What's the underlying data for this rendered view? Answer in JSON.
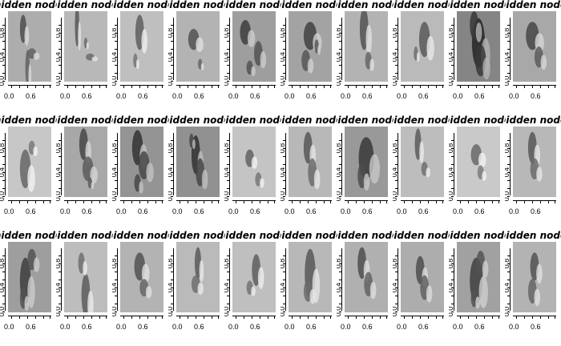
{
  "chart_data": {
    "type": "heatmap",
    "title": "",
    "colors": {
      "background": "#ffffff",
      "ink": "#000000",
      "map_mid": "#b4b4b4"
    },
    "panel_title": "hidden node",
    "x_tick_labels": [
      "0.0",
      "0.6"
    ],
    "y_tick_labels": [
      "0.0",
      "0.4",
      "0.8"
    ],
    "xlim": [
      0,
      1
    ],
    "ylim": [
      0,
      1
    ],
    "grid": false,
    "rows": 3,
    "cols": 10,
    "panels": [
      {
        "id": 1,
        "shade": 0.68,
        "strokes": [
          [
            0.35,
            0.75,
            0.15,
            0.4
          ],
          [
            0.55,
            0.4,
            0.2,
            0.15
          ],
          [
            0.45,
            0.2,
            0.1,
            0.5
          ]
        ]
      },
      {
        "id": 2,
        "shade": 0.72,
        "strokes": [
          [
            0.3,
            0.8,
            0.1,
            0.6
          ],
          [
            0.6,
            0.35,
            0.2,
            0.1
          ],
          [
            0.5,
            0.55,
            0.08,
            0.15
          ]
        ]
      },
      {
        "id": 3,
        "shade": 0.75,
        "strokes": [
          [
            0.45,
            0.7,
            0.2,
            0.5
          ],
          [
            0.35,
            0.3,
            0.1,
            0.2
          ]
        ]
      },
      {
        "id": 4,
        "shade": 0.7,
        "strokes": [
          [
            0.4,
            0.6,
            0.25,
            0.3
          ],
          [
            0.55,
            0.25,
            0.1,
            0.15
          ]
        ]
      },
      {
        "id": 5,
        "shade": 0.62,
        "strokes": [
          [
            0.3,
            0.7,
            0.25,
            0.35
          ],
          [
            0.6,
            0.4,
            0.2,
            0.35
          ],
          [
            0.4,
            0.2,
            0.15,
            0.2
          ]
        ]
      },
      {
        "id": 6,
        "shade": 0.64,
        "strokes": [
          [
            0.5,
            0.65,
            0.3,
            0.4
          ],
          [
            0.4,
            0.3,
            0.2,
            0.3
          ],
          [
            0.65,
            0.5,
            0.1,
            0.2
          ]
        ]
      },
      {
        "id": 7,
        "shade": 0.7,
        "strokes": [
          [
            0.45,
            0.75,
            0.2,
            0.6
          ],
          [
            0.55,
            0.3,
            0.15,
            0.25
          ]
        ]
      },
      {
        "id": 8,
        "shade": 0.73,
        "strokes": [
          [
            0.55,
            0.6,
            0.25,
            0.5
          ],
          [
            0.35,
            0.4,
            0.1,
            0.2
          ]
        ]
      },
      {
        "id": 9,
        "shade": 0.52,
        "strokes": [
          [
            0.5,
            0.55,
            0.3,
            0.7
          ],
          [
            0.4,
            0.8,
            0.2,
            0.4
          ],
          [
            0.55,
            0.3,
            0.25,
            0.45
          ]
        ]
      },
      {
        "id": 10,
        "shade": 0.66,
        "strokes": [
          [
            0.45,
            0.65,
            0.3,
            0.4
          ],
          [
            0.6,
            0.35,
            0.2,
            0.3
          ]
        ]
      },
      {
        "id": 11,
        "shade": 0.78,
        "strokes": [
          [
            0.4,
            0.4,
            0.25,
            0.55
          ],
          [
            0.55,
            0.7,
            0.15,
            0.2
          ]
        ]
      },
      {
        "id": 12,
        "shade": 0.66,
        "strokes": [
          [
            0.45,
            0.75,
            0.2,
            0.45
          ],
          [
            0.55,
            0.4,
            0.25,
            0.35
          ],
          [
            0.6,
            0.2,
            0.1,
            0.15
          ]
        ]
      },
      {
        "id": 13,
        "shade": 0.58,
        "strokes": [
          [
            0.4,
            0.7,
            0.25,
            0.5
          ],
          [
            0.55,
            0.45,
            0.25,
            0.4
          ],
          [
            0.4,
            0.2,
            0.15,
            0.25
          ]
        ]
      },
      {
        "id": 14,
        "shade": 0.57,
        "strokes": [
          [
            0.45,
            0.6,
            0.2,
            0.55
          ],
          [
            0.55,
            0.35,
            0.2,
            0.4
          ],
          [
            0.35,
            0.8,
            0.1,
            0.2
          ]
        ]
      },
      {
        "id": 15,
        "shade": 0.77,
        "strokes": [
          [
            0.4,
            0.55,
            0.2,
            0.25
          ],
          [
            0.6,
            0.25,
            0.15,
            0.2
          ]
        ]
      },
      {
        "id": 16,
        "shade": 0.72,
        "strokes": [
          [
            0.45,
            0.7,
            0.2,
            0.45
          ],
          [
            0.55,
            0.35,
            0.2,
            0.4
          ]
        ]
      },
      {
        "id": 17,
        "shade": 0.6,
        "strokes": [
          [
            0.5,
            0.55,
            0.35,
            0.6
          ],
          [
            0.4,
            0.3,
            0.2,
            0.35
          ]
        ]
      },
      {
        "id": 18,
        "shade": 0.74,
        "strokes": [
          [
            0.4,
            0.75,
            0.15,
            0.45
          ],
          [
            0.55,
            0.4,
            0.15,
            0.2
          ]
        ]
      },
      {
        "id": 19,
        "shade": 0.79,
        "strokes": [
          [
            0.45,
            0.6,
            0.25,
            0.3
          ],
          [
            0.55,
            0.35,
            0.15,
            0.2
          ]
        ]
      },
      {
        "id": 20,
        "shade": 0.72,
        "strokes": [
          [
            0.45,
            0.7,
            0.2,
            0.45
          ],
          [
            0.5,
            0.4,
            0.2,
            0.3
          ]
        ]
      },
      {
        "id": 21,
        "shade": 0.62,
        "strokes": [
          [
            0.4,
            0.45,
            0.25,
            0.65
          ],
          [
            0.55,
            0.75,
            0.2,
            0.3
          ],
          [
            0.35,
            0.2,
            0.15,
            0.3
          ]
        ]
      },
      {
        "id": 22,
        "shade": 0.74,
        "strokes": [
          [
            0.5,
            0.25,
            0.2,
            0.6
          ],
          [
            0.4,
            0.7,
            0.15,
            0.3
          ]
        ]
      },
      {
        "id": 23,
        "shade": 0.7,
        "strokes": [
          [
            0.45,
            0.65,
            0.25,
            0.4
          ],
          [
            0.55,
            0.35,
            0.2,
            0.25
          ]
        ]
      },
      {
        "id": 24,
        "shade": 0.73,
        "strokes": [
          [
            0.5,
            0.7,
            0.15,
            0.45
          ],
          [
            0.45,
            0.4,
            0.2,
            0.25
          ]
        ]
      },
      {
        "id": 25,
        "shade": 0.75,
        "strokes": [
          [
            0.55,
            0.6,
            0.2,
            0.45
          ],
          [
            0.4,
            0.35,
            0.15,
            0.2
          ]
        ]
      },
      {
        "id": 26,
        "shade": 0.72,
        "strokes": [
          [
            0.5,
            0.55,
            0.25,
            0.7
          ],
          [
            0.45,
            0.3,
            0.2,
            0.3
          ]
        ]
      },
      {
        "id": 27,
        "shade": 0.69,
        "strokes": [
          [
            0.4,
            0.7,
            0.2,
            0.45
          ],
          [
            0.55,
            0.4,
            0.2,
            0.35
          ]
        ]
      },
      {
        "id": 28,
        "shade": 0.68,
        "strokes": [
          [
            0.45,
            0.6,
            0.2,
            0.4
          ],
          [
            0.55,
            0.35,
            0.2,
            0.35
          ]
        ]
      },
      {
        "id": 29,
        "shade": 0.63,
        "strokes": [
          [
            0.45,
            0.45,
            0.3,
            0.65
          ],
          [
            0.55,
            0.7,
            0.2,
            0.35
          ],
          [
            0.4,
            0.2,
            0.15,
            0.25
          ]
        ]
      },
      {
        "id": 30,
        "shade": 0.7,
        "strokes": [
          [
            0.5,
            0.65,
            0.2,
            0.4
          ],
          [
            0.45,
            0.3,
            0.2,
            0.35
          ]
        ]
      }
    ]
  }
}
